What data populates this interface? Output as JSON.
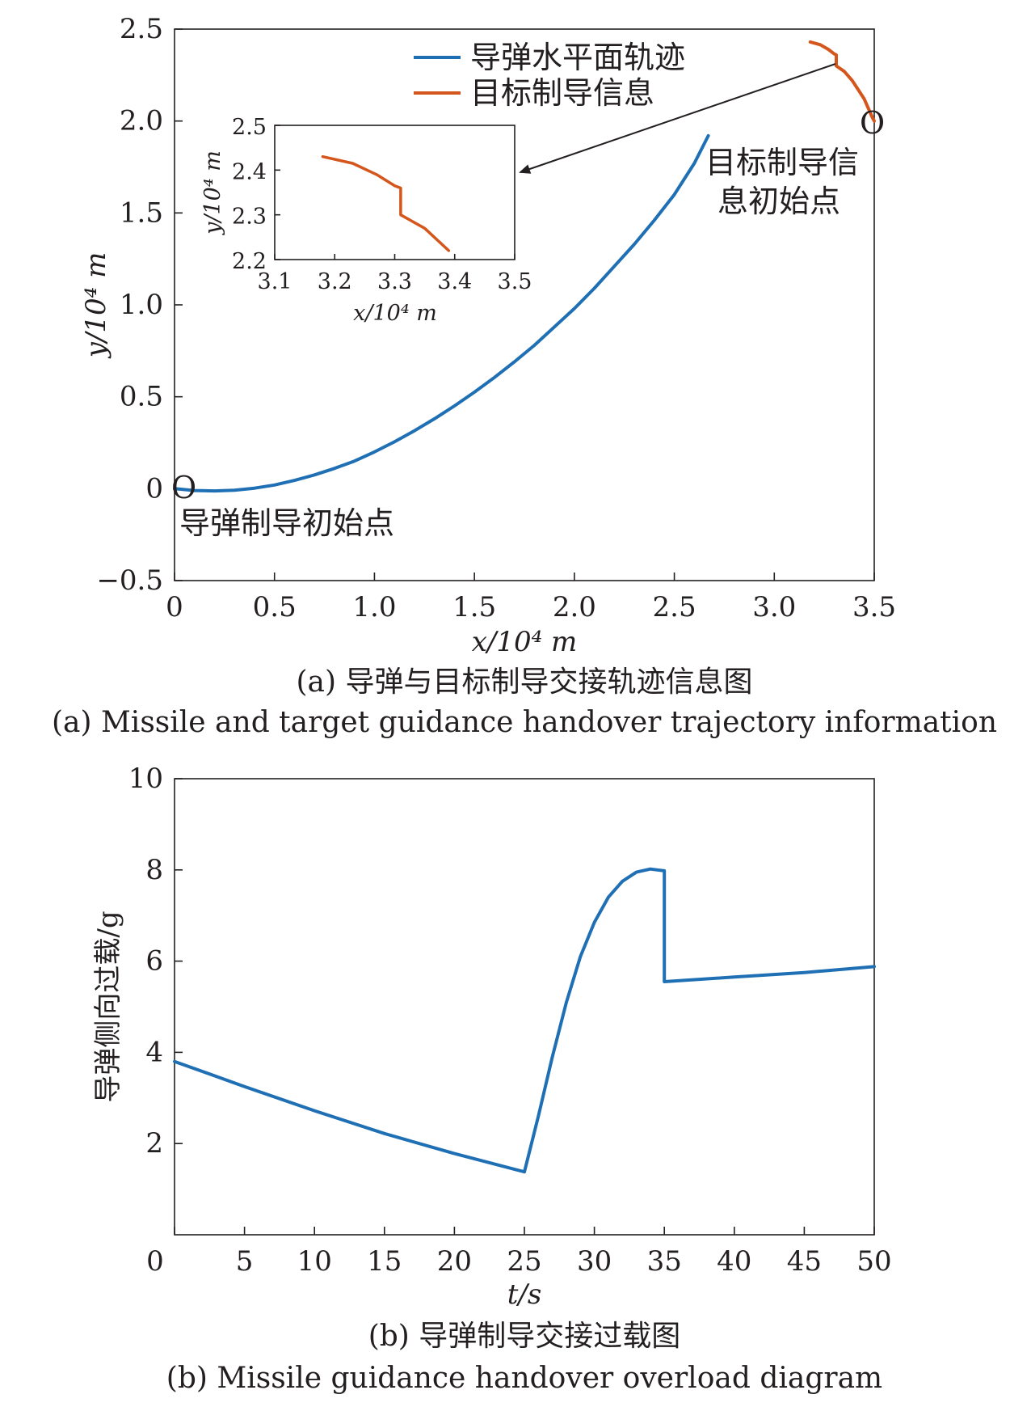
{
  "figure": {
    "panels": [
      {
        "caption_cn": "(a) 导弹与目标制导交接轨迹信息图",
        "caption_en": "(a) Missile and target guidance handover trajectory information",
        "legend": [
          {
            "label": "导弹水平面轨迹",
            "color": "#1f6fb4"
          },
          {
            "label": "目标制导信息",
            "color": "#d5561c"
          }
        ],
        "annotations": {
          "missile_start_line1": "导弹制导初始点",
          "target_start_line1": "目标制导信",
          "target_start_line2": "息初始点",
          "origin_marker": "O"
        },
        "axes": {
          "xlabel": "x/10⁴ m",
          "ylabel": "y/10⁴ m",
          "x_ticks": [
            "0",
            "0.5",
            "1.0",
            "1.5",
            "2.0",
            "2.5",
            "3.0",
            "3.5"
          ],
          "y_ticks": [
            "−0.5",
            "0",
            "0.5",
            "1.0",
            "1.5",
            "2.0",
            "2.5"
          ]
        },
        "inset_axes": {
          "xlabel": "x/10⁴ m",
          "ylabel": "y/10⁴ m",
          "x_ticks": [
            "3.1",
            "3.2",
            "3.3",
            "3.4",
            "3.5"
          ],
          "y_ticks": [
            "2.2",
            "2.3",
            "2.4",
            "2.5"
          ]
        }
      },
      {
        "caption_cn": "(b) 导弹制导交接过载图",
        "caption_en": "(b) Missile guidance handover overload diagram",
        "axes": {
          "xlabel": "t/s",
          "ylabel": "导弹侧向过载/g",
          "x_ticks": [
            "0",
            "5",
            "10",
            "15",
            "20",
            "25",
            "30",
            "35",
            "40",
            "45",
            "50"
          ],
          "y_ticks": [
            "2",
            "4",
            "6",
            "8",
            "10"
          ]
        }
      }
    ]
  },
  "chart_data": [
    {
      "type": "line",
      "xlabel": "x/10⁴ m",
      "ylabel": "y/10⁴ m",
      "xlim": [
        0,
        3.5
      ],
      "ylim": [
        -0.5,
        2.5
      ],
      "legend_placement": "top-right",
      "grid": false,
      "series": [
        {
          "name": "导弹水平面轨迹",
          "color": "#1f6fb4",
          "x": [
            0,
            0.1,
            0.2,
            0.3,
            0.4,
            0.5,
            0.6,
            0.7,
            0.8,
            0.9,
            1.0,
            1.1,
            1.2,
            1.3,
            1.4,
            1.5,
            1.6,
            1.7,
            1.8,
            1.9,
            2.0,
            2.1,
            2.2,
            2.3,
            2.4,
            2.5,
            2.6,
            2.67
          ],
          "y": [
            0,
            -0.01,
            -0.012,
            -0.008,
            0.003,
            0.02,
            0.045,
            0.075,
            0.11,
            0.15,
            0.2,
            0.255,
            0.315,
            0.38,
            0.45,
            0.525,
            0.605,
            0.69,
            0.78,
            0.88,
            0.98,
            1.09,
            1.21,
            1.33,
            1.46,
            1.6,
            1.77,
            1.92
          ]
        },
        {
          "name": "目标制导信息",
          "color": "#d5561c",
          "x": [
            3.18,
            3.23,
            3.27,
            3.3,
            3.31,
            3.31,
            3.35,
            3.39,
            3.42,
            3.45,
            3.47,
            3.49,
            3.5
          ],
          "y": [
            2.43,
            2.415,
            2.39,
            2.365,
            2.36,
            2.3,
            2.27,
            2.22,
            2.17,
            2.12,
            2.07,
            2.02,
            2.0
          ]
        }
      ]
    },
    {
      "type": "line",
      "xlabel": "t/s",
      "ylabel": "导弹侧向过载/g",
      "xlim": [
        0,
        50
      ],
      "ylim": [
        0,
        10
      ],
      "grid": false,
      "series": [
        {
          "color": "#1f6fb4",
          "x": [
            0,
            5,
            10,
            15,
            20,
            25,
            26,
            27,
            28,
            29,
            30,
            31,
            32,
            33,
            34,
            34.5,
            35,
            35,
            40,
            45,
            50
          ],
          "y": [
            3.8,
            3.25,
            2.72,
            2.22,
            1.78,
            1.38,
            2.6,
            3.9,
            5.1,
            6.1,
            6.85,
            7.4,
            7.75,
            7.95,
            8.02,
            8.0,
            7.98,
            5.55,
            5.65,
            5.75,
            5.88
          ]
        }
      ]
    }
  ]
}
